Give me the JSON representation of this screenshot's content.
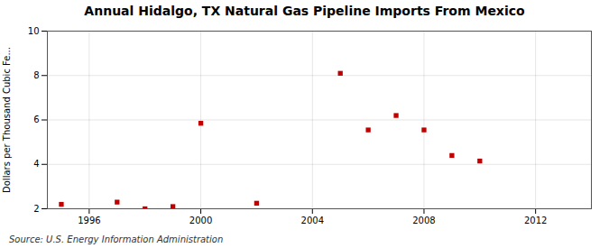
{
  "chart_data": {
    "type": "scatter",
    "title": "Annual Hidalgo, TX Natural Gas Pipeline Imports From Mexico",
    "ylabel": "Dollars per Thousand Cubic Fe...",
    "annotations": [
      "Source: U.S. Energy Information Administration"
    ],
    "x": [
      1995,
      1997,
      1998,
      1999,
      2000,
      2002,
      2005,
      2006,
      2007,
      2008,
      2009,
      2010
    ],
    "values": [
      2.2,
      2.3,
      2.0,
      2.1,
      5.85,
      2.25,
      8.1,
      5.55,
      6.2,
      5.55,
      4.4,
      4.15
    ],
    "color": "#c00000",
    "marker": "square",
    "xlim": [
      1994.5,
      2014
    ],
    "ylim": [
      2,
      10
    ],
    "xticks": [
      1996,
      2000,
      2004,
      2008,
      2012
    ],
    "yticks": [
      2,
      4,
      6,
      8,
      10
    ],
    "grid": true
  }
}
